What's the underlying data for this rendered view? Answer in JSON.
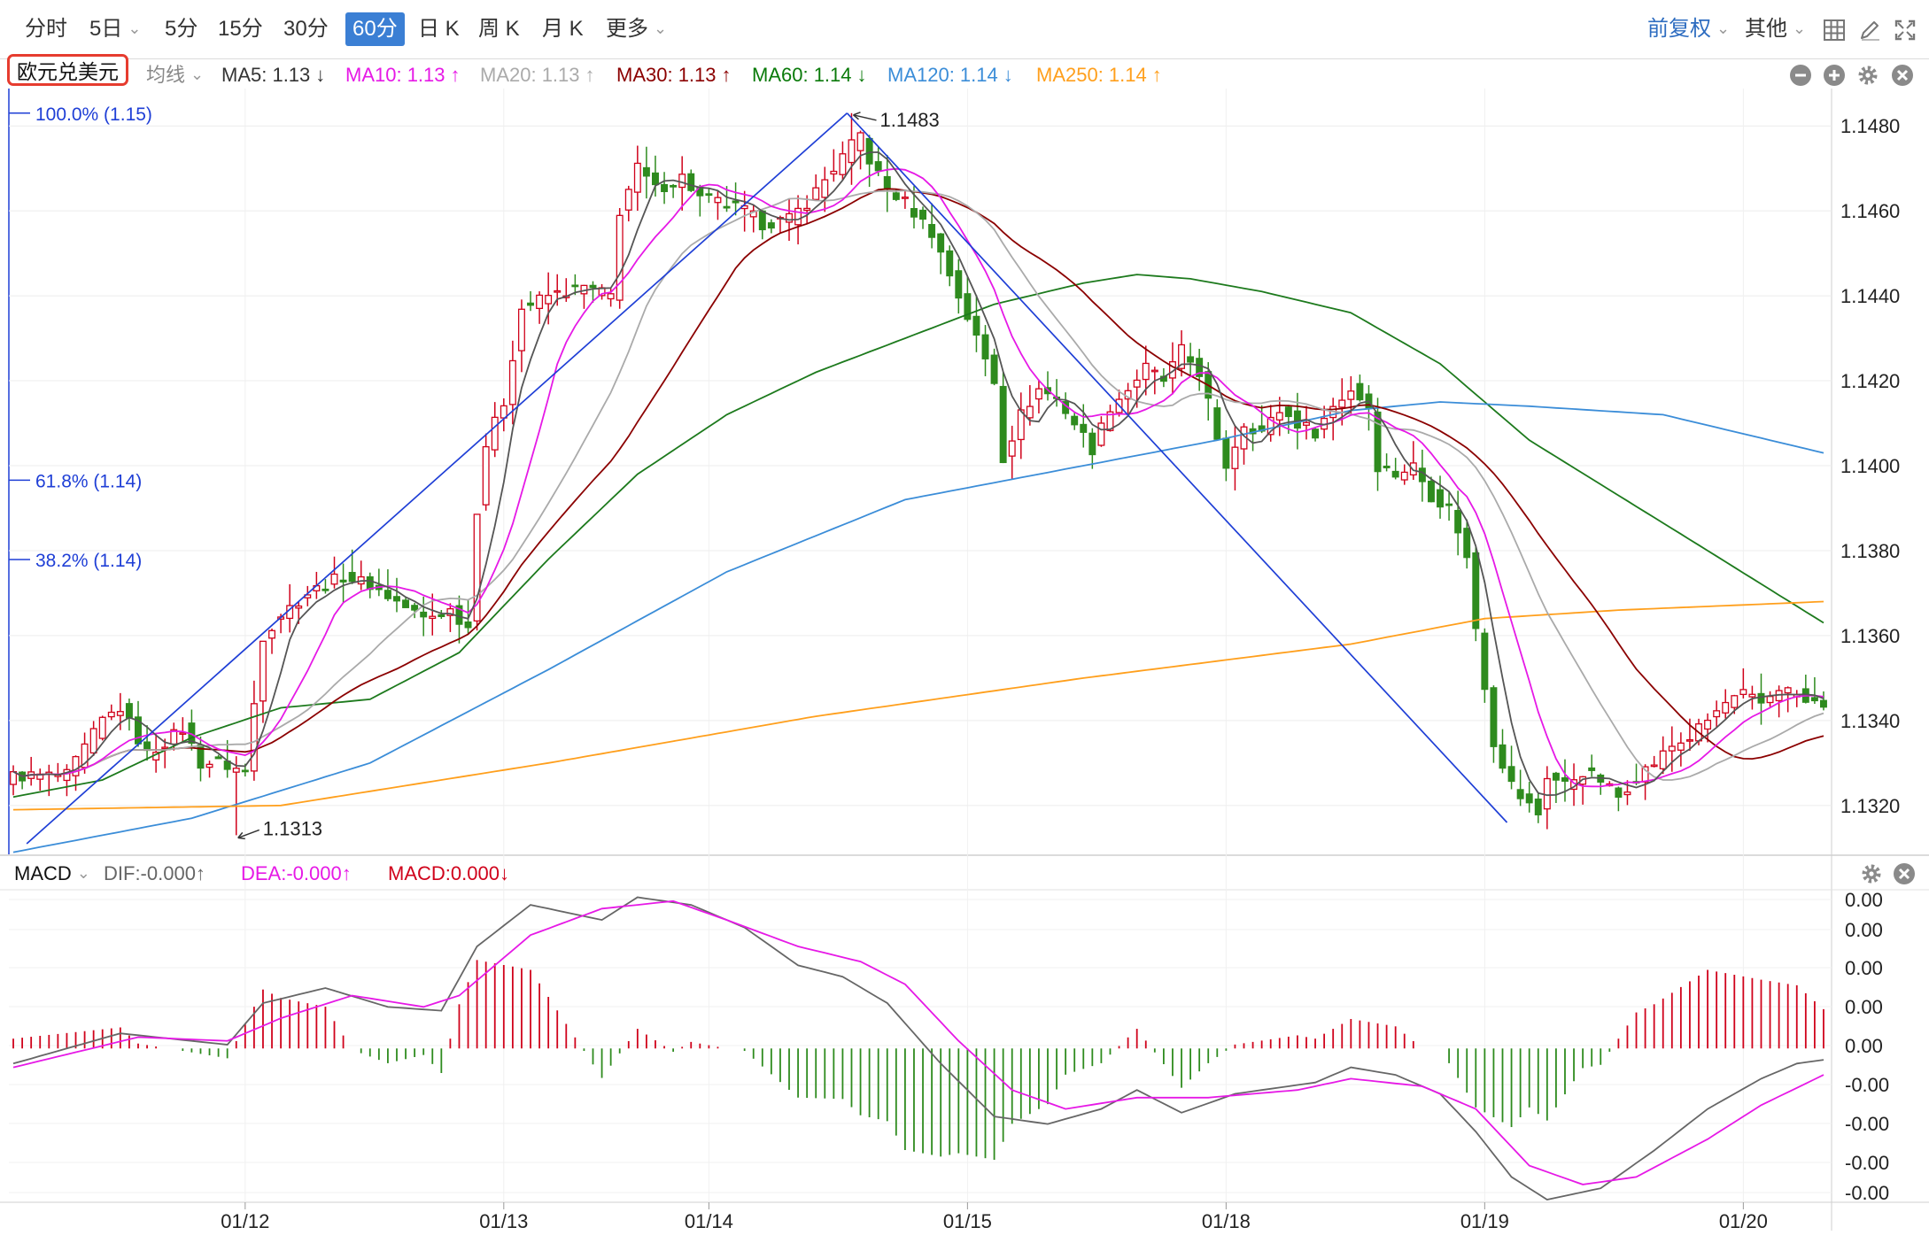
{
  "toolbar": {
    "periods": [
      {
        "label": "分时",
        "active": false
      },
      {
        "label": "5日",
        "active": false,
        "dropdown": true
      },
      {
        "label": "5分",
        "active": false
      },
      {
        "label": "15分",
        "active": false
      },
      {
        "label": "30分",
        "active": false
      },
      {
        "label": "60分",
        "active": true
      },
      {
        "label": "日 K",
        "active": false
      },
      {
        "label": "周 K",
        "active": false
      },
      {
        "label": "月 K",
        "active": false
      },
      {
        "label": "更多",
        "active": false,
        "dropdown": true
      }
    ],
    "adjust_label": "前复权",
    "other_label": "其他",
    "icons": [
      "grid-layout-icon",
      "draw-pen-icon",
      "fullscreen-icon"
    ]
  },
  "legend": {
    "symbol": "欧元兑美元",
    "ma_type": "均线",
    "items": [
      {
        "label": "MA5: 1.13",
        "arrow": "↓",
        "color": "#333333"
      },
      {
        "label": "MA10: 1.13",
        "arrow": "↑",
        "color": "#e619e6"
      },
      {
        "label": "MA20: 1.13",
        "arrow": "↑",
        "color": "#aaaaaa"
      },
      {
        "label": "MA30: 1.13",
        "arrow": "↑",
        "color": "#8b0000"
      },
      {
        "label": "MA60: 1.14",
        "arrow": "↓",
        "color": "#0a7a0a"
      },
      {
        "label": "MA120: 1.14",
        "arrow": "↓",
        "color": "#3b8dd8"
      },
      {
        "label": "MA250: 1.14",
        "arrow": "↑",
        "color": "#ff9f1c"
      }
    ]
  },
  "fib_levels": [
    {
      "label": "100.0% (1.15)",
      "value": 1.1483
    },
    {
      "label": "61.8% (1.14)",
      "value": 1.13966
    },
    {
      "label": "38.2% (1.14)",
      "value": 1.13779
    }
  ],
  "macd_legend": {
    "name": "MACD",
    "dif": "DIF:-0.000↑",
    "dea": "DEA:-0.000↑",
    "macd": "MACD:0.000↓",
    "dif_color": "#666666",
    "dea_color": "#e619e6",
    "macd_color": "#d0021b"
  },
  "macd_axis_labels": [
    "0.00",
    "0.00",
    "0.00",
    "0.00",
    "0.00",
    "-0.00",
    "-0.00",
    "-0.00",
    "-0.00"
  ],
  "colors": {
    "up": "#d0021b",
    "down": "#2e8b1e",
    "grid": "#ececec",
    "fib_line": "#1f3fd6"
  },
  "chart_data": {
    "type": "candlestick",
    "title": "欧元兑美元",
    "period": "60分",
    "price_ticks": [
      "1.1480",
      "1.1460",
      "1.1440",
      "1.1420",
      "1.1400",
      "1.1380",
      "1.1360",
      "1.1340",
      "1.1320"
    ],
    "price_range": [
      1.1311,
      1.1484
    ],
    "high_label": "1.1483",
    "low_label": "1.1313",
    "high_value": 1.1483,
    "low_value": 1.1313,
    "date_labels": [
      {
        "label": "01/12",
        "bar": 26
      },
      {
        "label": "01/13",
        "bar": 55
      },
      {
        "label": "01/14",
        "bar": 78
      },
      {
        "label": "01/15",
        "bar": 107
      },
      {
        "label": "01/18",
        "bar": 136
      },
      {
        "label": "01/19",
        "bar": 165
      },
      {
        "label": "01/20",
        "bar": 194
      }
    ],
    "close_keyframes": [
      [
        0,
        1.1327
      ],
      [
        6,
        1.1327
      ],
      [
        10,
        1.134
      ],
      [
        12,
        1.1343
      ],
      [
        15,
        1.1332
      ],
      [
        19,
        1.1338
      ],
      [
        21,
        1.133
      ],
      [
        23,
        1.133
      ],
      [
        26,
        1.1328
      ],
      [
        28,
        1.136
      ],
      [
        30,
        1.1365
      ],
      [
        33,
        1.137
      ],
      [
        37,
        1.1374
      ],
      [
        40,
        1.1372
      ],
      [
        43,
        1.1368
      ],
      [
        46,
        1.1364
      ],
      [
        49,
        1.1366
      ],
      [
        51,
        1.1362
      ],
      [
        52,
        1.139
      ],
      [
        53,
        1.1405
      ],
      [
        55,
        1.1415
      ],
      [
        57,
        1.1437
      ],
      [
        60,
        1.144
      ],
      [
        64,
        1.1442
      ],
      [
        67,
        1.144
      ],
      [
        68,
        1.146
      ],
      [
        70,
        1.147
      ],
      [
        72,
        1.1465
      ],
      [
        75,
        1.1468
      ],
      [
        77,
        1.1463
      ],
      [
        79,
        1.1462
      ],
      [
        82,
        1.146
      ],
      [
        84,
        1.1457
      ],
      [
        87,
        1.1458
      ],
      [
        89,
        1.1462
      ],
      [
        92,
        1.147
      ],
      [
        95,
        1.1478
      ],
      [
        96,
        1.1472
      ],
      [
        98,
        1.1465
      ],
      [
        100,
        1.1462
      ],
      [
        103,
        1.1455
      ],
      [
        106,
        1.144
      ],
      [
        108,
        1.143
      ],
      [
        110,
        1.142
      ],
      [
        111,
        1.1402
      ],
      [
        113,
        1.1412
      ],
      [
        115,
        1.1418
      ],
      [
        117,
        1.1416
      ],
      [
        119,
        1.141
      ],
      [
        121,
        1.1404
      ],
      [
        123,
        1.1414
      ],
      [
        125,
        1.1418
      ],
      [
        127,
        1.1423
      ],
      [
        129,
        1.142
      ],
      [
        131,
        1.1427
      ],
      [
        133,
        1.1422
      ],
      [
        134,
        1.1415
      ],
      [
        135,
        1.1405
      ],
      [
        136,
        1.14
      ],
      [
        138,
        1.141
      ],
      [
        140,
        1.1408
      ],
      [
        142,
        1.1413
      ],
      [
        144,
        1.141
      ],
      [
        146,
        1.1408
      ],
      [
        148,
        1.1414
      ],
      [
        150,
        1.1418
      ],
      [
        152,
        1.1414
      ],
      [
        153,
        1.14
      ],
      [
        155,
        1.1398
      ],
      [
        157,
        1.14
      ],
      [
        159,
        1.1393
      ],
      [
        161,
        1.139
      ],
      [
        162,
        1.1385
      ],
      [
        163,
        1.1378
      ],
      [
        164,
        1.1362
      ],
      [
        166,
        1.1335
      ],
      [
        168,
        1.1325
      ],
      [
        169,
        1.1322
      ],
      [
        171,
        1.1318
      ],
      [
        172,
        1.1327
      ],
      [
        174,
        1.1325
      ],
      [
        176,
        1.1328
      ],
      [
        178,
        1.1326
      ],
      [
        180,
        1.1322
      ],
      [
        182,
        1.1327
      ],
      [
        184,
        1.133
      ],
      [
        186,
        1.1334
      ],
      [
        188,
        1.1336
      ],
      [
        190,
        1.134
      ],
      [
        192,
        1.1344
      ],
      [
        194,
        1.1346
      ],
      [
        196,
        1.1344
      ],
      [
        198,
        1.1348
      ],
      [
        200,
        1.1346
      ],
      [
        201,
        1.1344
      ],
      [
        203,
        1.1344
      ]
    ],
    "ma_series": [
      {
        "name": "MA5",
        "color": "#555555",
        "period": 5
      },
      {
        "name": "MA10",
        "color": "#e619e6",
        "period": 10
      },
      {
        "name": "MA20",
        "color": "#aaaaaa",
        "period": 20
      },
      {
        "name": "MA30",
        "color": "#8b0000",
        "period": 30
      }
    ],
    "long_ma_series": [
      {
        "name": "MA60",
        "color": "#1d7a1d",
        "points": [
          [
            0,
            1.1322
          ],
          [
            10,
            1.1326
          ],
          [
            20,
            1.1336
          ],
          [
            30,
            1.1343
          ],
          [
            40,
            1.1345
          ],
          [
            50,
            1.1356
          ],
          [
            60,
            1.1378
          ],
          [
            70,
            1.1398
          ],
          [
            80,
            1.1412
          ],
          [
            90,
            1.1422
          ],
          [
            100,
            1.143
          ],
          [
            110,
            1.1438
          ],
          [
            120,
            1.1443
          ],
          [
            126,
            1.1445
          ],
          [
            132,
            1.1444
          ],
          [
            140,
            1.1441
          ],
          [
            150,
            1.1436
          ],
          [
            160,
            1.1424
          ],
          [
            170,
            1.1406
          ],
          [
            180,
            1.1393
          ],
          [
            190,
            1.138
          ],
          [
            203,
            1.1363
          ]
        ]
      },
      {
        "name": "MA120",
        "color": "#3b8dd8",
        "points": [
          [
            0,
            1.1309
          ],
          [
            20,
            1.1317
          ],
          [
            40,
            1.133
          ],
          [
            60,
            1.1352
          ],
          [
            80,
            1.1375
          ],
          [
            100,
            1.1392
          ],
          [
            120,
            1.14
          ],
          [
            135,
            1.1406
          ],
          [
            150,
            1.1413
          ],
          [
            160,
            1.1415
          ],
          [
            170,
            1.1414
          ],
          [
            185,
            1.1412
          ],
          [
            203,
            1.1403
          ]
        ]
      },
      {
        "name": "MA250",
        "color": "#ff9f1c",
        "points": [
          [
            0,
            1.1319
          ],
          [
            30,
            1.132
          ],
          [
            60,
            1.133
          ],
          [
            90,
            1.1341
          ],
          [
            120,
            1.135
          ],
          [
            150,
            1.1358
          ],
          [
            165,
            1.1364
          ],
          [
            180,
            1.1366
          ],
          [
            203,
            1.1368
          ]
        ]
      }
    ],
    "trend_lines": [
      {
        "points": [
          [
            1.5,
            1.1311
          ],
          [
            93.5,
            1.1483
          ]
        ]
      },
      {
        "points": [
          [
            93.5,
            1.1483
          ],
          [
            167.5,
            1.1316
          ]
        ]
      }
    ],
    "macd": {
      "ylim": [
        -0.004,
        0.0042
      ],
      "dif_keyframes": [
        [
          0,
          -0.0004
        ],
        [
          12,
          0.0004
        ],
        [
          24,
          0.0001
        ],
        [
          28,
          0.0012
        ],
        [
          35,
          0.0016
        ],
        [
          42,
          0.0011
        ],
        [
          48,
          0.001
        ],
        [
          52,
          0.0027
        ],
        [
          58,
          0.0038
        ],
        [
          66,
          0.0034
        ],
        [
          70,
          0.004
        ],
        [
          76,
          0.0038
        ],
        [
          82,
          0.0032
        ],
        [
          88,
          0.0022
        ],
        [
          93,
          0.0019
        ],
        [
          98,
          0.0012
        ],
        [
          104,
          -0.0004
        ],
        [
          110,
          -0.0018
        ],
        [
          116,
          -0.002
        ],
        [
          122,
          -0.0016
        ],
        [
          126,
          -0.0011
        ],
        [
          131,
          -0.0017
        ],
        [
          137,
          -0.0012
        ],
        [
          146,
          -0.0009
        ],
        [
          150,
          -0.0005
        ],
        [
          155,
          -0.0007
        ],
        [
          160,
          -0.0012
        ],
        [
          164,
          -0.0022
        ],
        [
          168,
          -0.0034
        ],
        [
          172,
          -0.004
        ],
        [
          178,
          -0.0037
        ],
        [
          184,
          -0.0027
        ],
        [
          190,
          -0.0016
        ],
        [
          196,
          -0.0008
        ],
        [
          200,
          -0.0004
        ],
        [
          203,
          -0.0003
        ]
      ],
      "dea_keyframes": [
        [
          0,
          -0.0005
        ],
        [
          14,
          0.0003
        ],
        [
          24,
          0.0002
        ],
        [
          30,
          0.0008
        ],
        [
          38,
          0.0014
        ],
        [
          46,
          0.0011
        ],
        [
          50,
          0.0014
        ],
        [
          58,
          0.003
        ],
        [
          66,
          0.0037
        ],
        [
          74,
          0.0039
        ],
        [
          80,
          0.0034
        ],
        [
          88,
          0.0027
        ],
        [
          95,
          0.0023
        ],
        [
          100,
          0.0017
        ],
        [
          106,
          0.0002
        ],
        [
          112,
          -0.0011
        ],
        [
          118,
          -0.0016
        ],
        [
          126,
          -0.0013
        ],
        [
          134,
          -0.0013
        ],
        [
          144,
          -0.0011
        ],
        [
          150,
          -0.0008
        ],
        [
          158,
          -0.001
        ],
        [
          164,
          -0.0016
        ],
        [
          170,
          -0.0031
        ],
        [
          176,
          -0.0036
        ],
        [
          182,
          -0.0034
        ],
        [
          190,
          -0.0024
        ],
        [
          196,
          -0.0015
        ],
        [
          203,
          -0.0007
        ]
      ]
    }
  }
}
